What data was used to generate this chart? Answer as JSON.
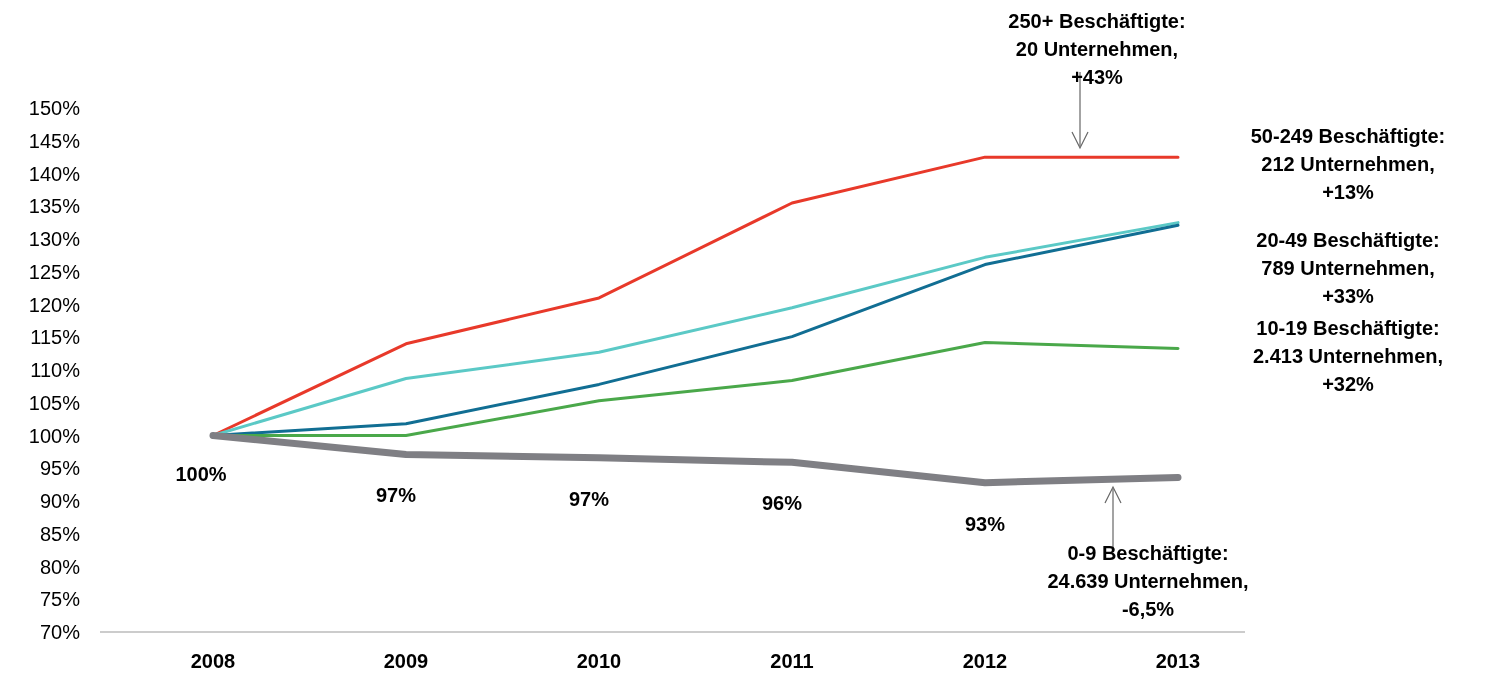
{
  "chart_data": {
    "type": "line",
    "categories": [
      "2008",
      "2009",
      "2010",
      "2011",
      "2012",
      "2013"
    ],
    "ylim": [
      70,
      150
    ],
    "yticks": [
      {
        "value": 70,
        "label": "70%"
      },
      {
        "value": 75,
        "label": "75%"
      },
      {
        "value": 80,
        "label": "80%"
      },
      {
        "value": 85,
        "label": "85%"
      },
      {
        "value": 90,
        "label": "90%"
      },
      {
        "value": 95,
        "label": "95%"
      },
      {
        "value": 100,
        "label": "100%"
      },
      {
        "value": 105,
        "label": "105%"
      },
      {
        "value": 110,
        "label": "110%"
      },
      {
        "value": 115,
        "label": "115%"
      },
      {
        "value": 120,
        "label": "120%"
      },
      {
        "value": 125,
        "label": "125%"
      },
      {
        "value": 130,
        "label": "130%"
      },
      {
        "value": 135,
        "label": "135%"
      },
      {
        "value": 140,
        "label": "140%"
      },
      {
        "value": 145,
        "label": "145%"
      },
      {
        "value": 150,
        "label": "150%"
      }
    ],
    "marker": "none",
    "line_style": "solid",
    "series": [
      {
        "color": "#e8392a",
        "values": [
          100,
          114,
          121,
          135.5,
          142.5,
          142.5
        ]
      },
      {
        "color": "#5bc9c6",
        "values": [
          100,
          108.7,
          112.7,
          119.5,
          127.2,
          132.5
        ]
      },
      {
        "color": "#116e93",
        "values": [
          100,
          101.8,
          107.8,
          115.1,
          126.1,
          132.1
        ]
      },
      {
        "color": "#4aa84a",
        "values": [
          100,
          100,
          105.3,
          108.4,
          114.2,
          113.3
        ]
      },
      {
        "color": "#7f7f84",
        "values": [
          100,
          97.1,
          96.6,
          95.9,
          92.8,
          93.6
        ],
        "value_labels": [
          "100%",
          "97%",
          "97%",
          "96%",
          "93%",
          null
        ]
      }
    ],
    "annotations": [
      "250+ Beschäftigte:\n20 Unternehmen,\n+43%",
      "50-249 Beschäftigte:\n212 Unternehmen,\n+13%",
      "20-49 Beschäftigte:\n789 Unternehmen,\n+33%",
      "10-19 Beschäftigte:\n2.413 Unternehmen,\n+32%",
      "0-9 Beschäftigte:\n24.639 Unternehmen,\n-6,5%"
    ]
  }
}
